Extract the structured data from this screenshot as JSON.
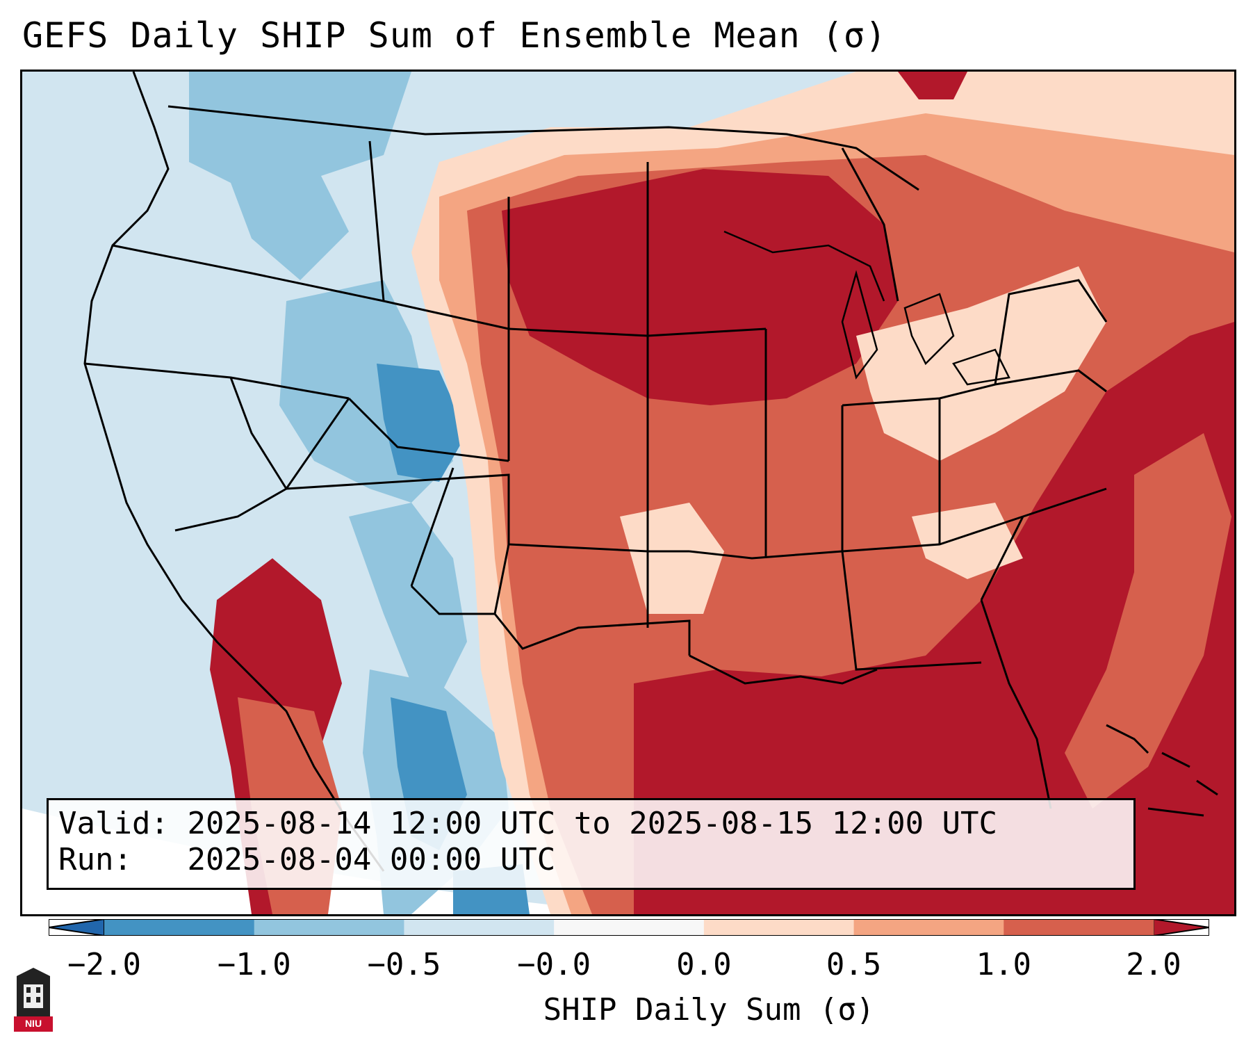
{
  "title": "GEFS Daily SHIP Sum of Ensemble Mean (σ)",
  "info": {
    "valid_label": "Valid:",
    "valid_value": "2025-08-14 12:00 UTC to 2025-08-15 12:00 UTC",
    "run_label": "Run:",
    "run_value": "2025-08-04 00:00 UTC"
  },
  "colorbar": {
    "label": "SHIP Daily Sum (σ)",
    "ticks": [
      "−2.0",
      "−1.0",
      "−0.5",
      "−0.0",
      "0.0",
      "0.5",
      "1.0",
      "2.0"
    ],
    "colors": [
      "#4393c3",
      "#92c5de",
      "#d1e5f0",
      "#f7f7f7",
      "#fddbc7",
      "#f4a582",
      "#d6604d",
      "#b2182b"
    ],
    "extend_low_color": "#2166ac",
    "extend_high_color": "#b2182b"
  },
  "logo": {
    "text": "NIU"
  }
}
